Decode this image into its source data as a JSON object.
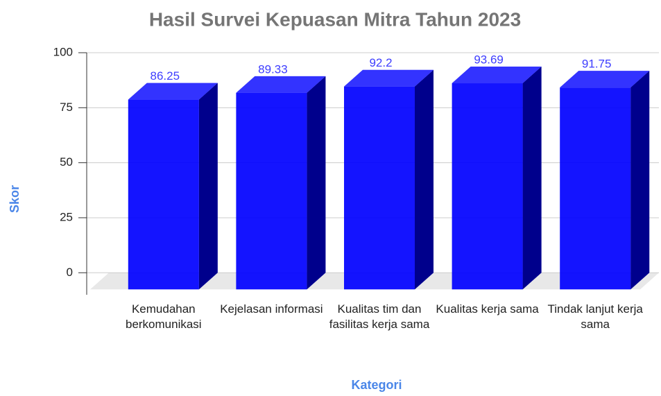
{
  "chart_data": {
    "type": "bar",
    "title": "Hasil Survei Kepuasan Mitra Tahun 2023",
    "x_label": "Kategori",
    "y_label": "Skor",
    "categories": [
      "Kemudahan berkomunikasi",
      "Kejelasan informasi",
      "Kualitas tim dan fasilitas kerja sama",
      "Kualitas kerja sama",
      "Tindak lanjut kerja sama"
    ],
    "values": [
      86.25,
      89.33,
      92.2,
      93.69,
      91.75
    ],
    "color": "#0000ff",
    "ylim": [
      -10,
      100
    ],
    "yticks": [
      0,
      25,
      50,
      75,
      100
    ],
    "grid": true
  }
}
